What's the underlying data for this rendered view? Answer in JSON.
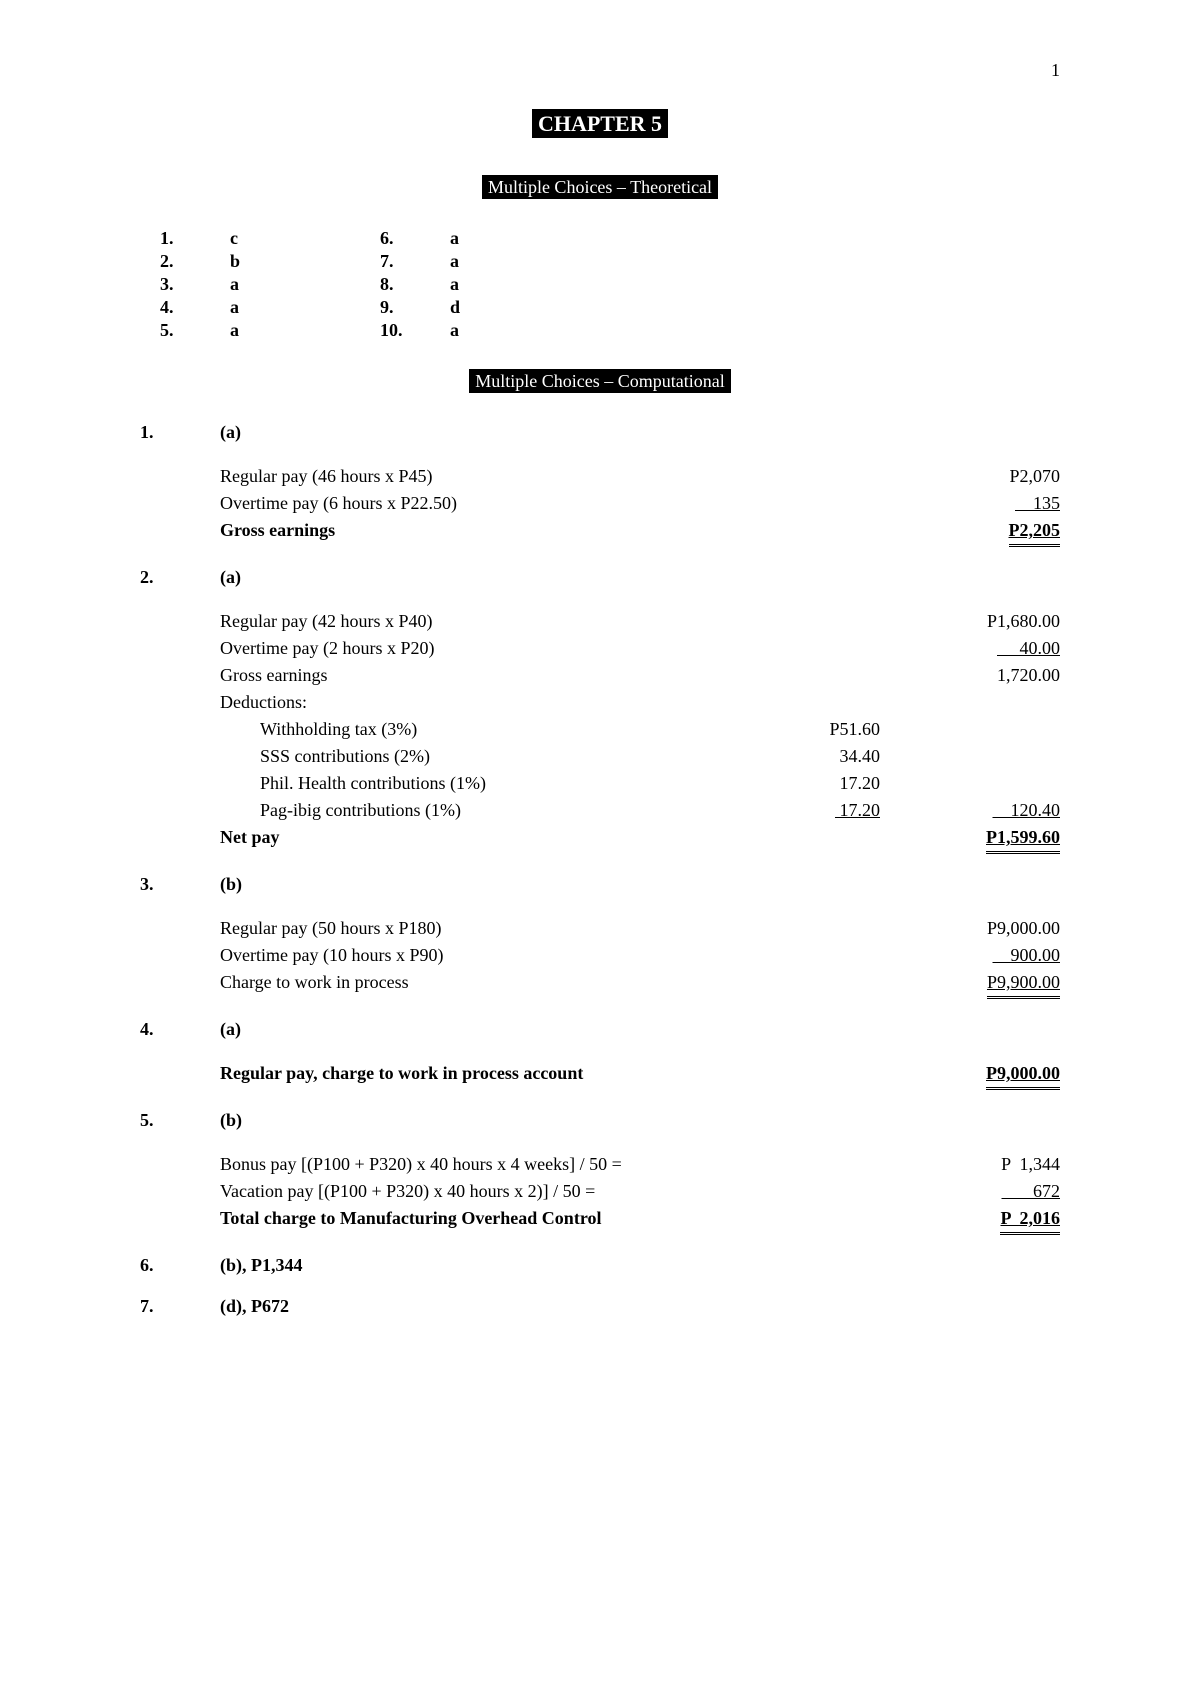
{
  "page_number": "1",
  "chapter_title": "CHAPTER 5",
  "section_theoretical": "Multiple Choices – Theoretical",
  "section_computational": "Multiple Choices – Computational ",
  "theoretical_left": [
    {
      "num": "1.",
      "ans": "c"
    },
    {
      "num": "2.",
      "ans": "b"
    },
    {
      "num": "3.",
      "ans": "a"
    },
    {
      "num": "4.",
      "ans": "a"
    },
    {
      "num": "5.",
      "ans": "a"
    }
  ],
  "theoretical_right": [
    {
      "num": "6.",
      "ans": "a"
    },
    {
      "num": "7.",
      "ans": "a"
    },
    {
      "num": "8.",
      "ans": "a"
    },
    {
      "num": "9.",
      "ans": "d"
    },
    {
      "num": "10.",
      "ans": "a"
    }
  ],
  "comp1": {
    "num": "1.",
    "ans": "(a)",
    "rows": [
      {
        "desc": "Regular pay (46 hours x P45)",
        "val": "P2,070"
      },
      {
        "desc": "Overtime pay (6 hours x P22.50)",
        "val": "    135",
        "ul": true
      },
      {
        "desc": "Gross earnings",
        "val": "P2,205",
        "bold": true,
        "dul": true
      }
    ]
  },
  "comp2": {
    "num": "2.",
    "ans": "(a)",
    "rows": [
      {
        "desc": "Regular pay (42 hours x P40)",
        "val": "P1,680.00"
      },
      {
        "desc": "Overtime pay (2 hours x P20)",
        "val": "     40.00",
        "ul": true
      },
      {
        "desc": "Gross earnings",
        "val": "1,720.00"
      },
      {
        "desc": "Deductions:",
        "val": ""
      },
      {
        "desc": "Withholding tax (3%)",
        "mid": "P51.60",
        "val": "",
        "indent": true
      },
      {
        "desc": "SSS contributions (2%)",
        "mid": "34.40",
        "val": "",
        "indent": true
      },
      {
        "desc": "Phil. Health contributions (1%)",
        "mid": "17.20",
        "val": "",
        "indent": true
      },
      {
        "desc": "Pag-ibig contributions (1%)",
        "mid": " 17.20",
        "midul": true,
        "val": "    120.40",
        "ul": true,
        "indent": true
      },
      {
        "desc": "Net pay",
        "val": "P1,599.60",
        "bold": true,
        "dul": true
      }
    ]
  },
  "comp3": {
    "num": "3.",
    "ans": "(b)",
    "rows": [
      {
        "desc": "Regular pay (50 hours x P180)",
        "val": "P9,000.00"
      },
      {
        "desc": "Overtime pay (10 hours x P90)",
        "val": "    900.00",
        "ul": true
      },
      {
        "desc": "Charge to work in process",
        "val": "P9,900.00",
        "dul": true
      }
    ]
  },
  "comp4": {
    "num": "4.",
    "ans": "(a)",
    "rows": [
      {
        "desc": "Regular pay, charge to work in process account",
        "val": "P9,000.00",
        "bold": true,
        "dul": true
      }
    ]
  },
  "comp5": {
    "num": "5.",
    "ans": "(b)",
    "rows": [
      {
        "desc": "Bonus pay [(P100  +  P320)  x  40 hours  x  4 weeks]  /  50  =",
        "val": "P  1,344"
      },
      {
        "desc": "Vacation pay [(P100  +  P320)  x  40 hours  x  2)]  /  50         =",
        "val": "       672",
        "ul": true
      },
      {
        "desc": "Total charge to Manufacturing Overhead Control",
        "val": "P  2,016",
        "bold": true,
        "dul": true
      }
    ]
  },
  "comp6": {
    "num": "6.",
    "ans": "(b),  P1,344"
  },
  "comp7": {
    "num": "7.",
    "ans": "(d),  P672"
  }
}
